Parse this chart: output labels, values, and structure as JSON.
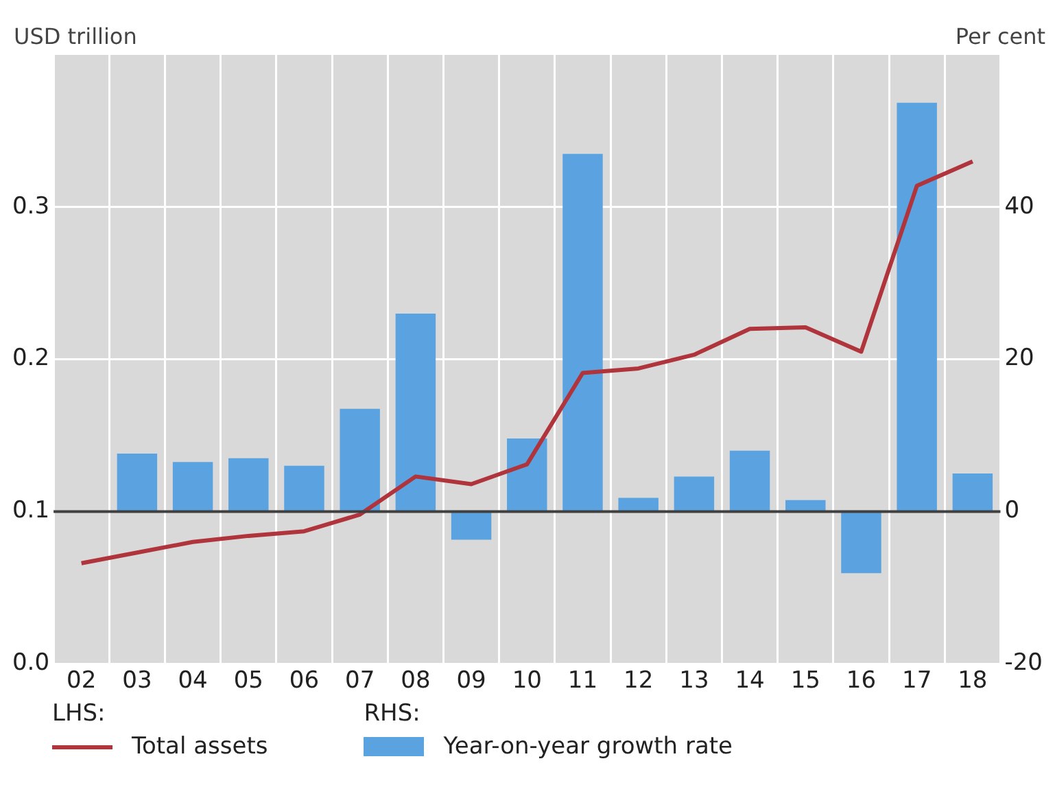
{
  "chart_data": {
    "type": "bar",
    "ylabel": "USD trillion",
    "y2label": "Per cent",
    "categories": [
      "02",
      "03",
      "04",
      "05",
      "06",
      "07",
      "08",
      "09",
      "10",
      "11",
      "12",
      "13",
      "14",
      "15",
      "16",
      "17",
      "18"
    ],
    "series": [
      {
        "name": "Total assets",
        "type": "line",
        "color": "#b0343c",
        "values": [
          0.066,
          0.073,
          0.08,
          0.084,
          0.087,
          0.098,
          0.123,
          0.118,
          0.131,
          0.191,
          0.194,
          0.203,
          0.22,
          0.221,
          0.205,
          0.314,
          0.33
        ]
      },
      {
        "name": "Year-on-year growth rate",
        "axis": "y2",
        "color": "#5ba3e0",
        "values": [
          null,
          7.6,
          6.5,
          7.0,
          6.0,
          13.5,
          26,
          -3.7,
          9.6,
          47,
          1.8,
          4.6,
          8.0,
          1.5,
          -8.1,
          53.7,
          5.0
        ]
      }
    ],
    "ylim": [
      0,
      0.4
    ],
    "yticks": [
      {
        "value": 0,
        "label": "0.0"
      },
      0.1,
      0.2,
      0.3
    ],
    "y2lim": [
      -20,
      60
    ],
    "y2ticks": [
      -20,
      0,
      20,
      40
    ],
    "ref_lines": [
      {
        "axis": "y2",
        "value": 0,
        "color": "#404040"
      }
    ],
    "annotations": [
      "LHS:",
      "RHS:"
    ],
    "grid": true,
    "legend": "bottom"
  }
}
